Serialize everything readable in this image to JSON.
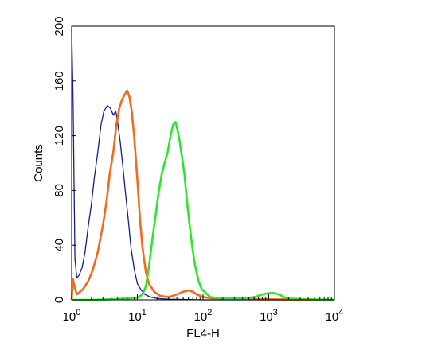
{
  "chart_data": {
    "type": "line",
    "title": "",
    "xlabel": "FL4-H",
    "ylabel": "Counts",
    "x_scale": "log",
    "xlim": [
      1,
      10000
    ],
    "ylim": [
      0,
      200
    ],
    "x_ticks": [
      {
        "value": 1,
        "base": "10",
        "exp": "0"
      },
      {
        "value": 10,
        "base": "10",
        "exp": "1"
      },
      {
        "value": 100,
        "base": "10",
        "exp": "2"
      },
      {
        "value": 1000,
        "base": "10",
        "exp": "3"
      },
      {
        "value": 10000,
        "base": "10",
        "exp": "4"
      }
    ],
    "y_ticks": [
      0,
      40,
      80,
      120,
      160,
      200
    ],
    "grid": false,
    "series": [
      {
        "color": "#1a1a8c",
        "points": [
          [
            1,
            198
          ],
          [
            1.05,
            150
          ],
          [
            1.12,
            30
          ],
          [
            1.2,
            16
          ],
          [
            1.3,
            18
          ],
          [
            1.45,
            24
          ],
          [
            1.6,
            35
          ],
          [
            1.8,
            55
          ],
          [
            2.0,
            70
          ],
          [
            2.2,
            88
          ],
          [
            2.5,
            108
          ],
          [
            2.8,
            128
          ],
          [
            3.1,
            138
          ],
          [
            3.5,
            142
          ],
          [
            3.9,
            140
          ],
          [
            4.3,
            135
          ],
          [
            4.7,
            138
          ],
          [
            5.0,
            130
          ],
          [
            5.5,
            115
          ],
          [
            6.0,
            98
          ],
          [
            6.6,
            78
          ],
          [
            7.3,
            58
          ],
          [
            8.0,
            38
          ],
          [
            9.0,
            22
          ],
          [
            10,
            12
          ],
          [
            11.5,
            7
          ],
          [
            13,
            4
          ],
          [
            16,
            2
          ],
          [
            20,
            1
          ],
          [
            30,
            0.5
          ],
          [
            100,
            0
          ],
          [
            10000,
            0
          ]
        ]
      },
      {
        "color": "#f26a1b",
        "points": [
          [
            1,
            0
          ],
          [
            1.05,
            15
          ],
          [
            1.1,
            10
          ],
          [
            1.2,
            4
          ],
          [
            1.35,
            6
          ],
          [
            1.5,
            8
          ],
          [
            1.8,
            14
          ],
          [
            2.1,
            22
          ],
          [
            2.5,
            35
          ],
          [
            3.0,
            55
          ],
          [
            3.4,
            72
          ],
          [
            3.8,
            92
          ],
          [
            4.3,
            108
          ],
          [
            4.8,
            128
          ],
          [
            5.3,
            140
          ],
          [
            5.8,
            146
          ],
          [
            6.4,
            150
          ],
          [
            7.0,
            153
          ],
          [
            7.6,
            148
          ],
          [
            8.2,
            138
          ],
          [
            9.0,
            118
          ],
          [
            10,
            88
          ],
          [
            11,
            58
          ],
          [
            12,
            38
          ],
          [
            13.5,
            20
          ],
          [
            15,
            12
          ],
          [
            18,
            6
          ],
          [
            22,
            3
          ],
          [
            30,
            2
          ],
          [
            40,
            4
          ],
          [
            50,
            6
          ],
          [
            60,
            7
          ],
          [
            70,
            6
          ],
          [
            80,
            4
          ],
          [
            100,
            2
          ],
          [
            150,
            1
          ],
          [
            300,
            0.5
          ],
          [
            10000,
            0
          ]
        ]
      },
      {
        "color": "#2ee52e",
        "points": [
          [
            1,
            0
          ],
          [
            2,
            0
          ],
          [
            5,
            0.5
          ],
          [
            10,
            1.5
          ],
          [
            12,
            4
          ],
          [
            13.5,
            10
          ],
          [
            15,
            24
          ],
          [
            17,
            45
          ],
          [
            19,
            62
          ],
          [
            21,
            78
          ],
          [
            23.5,
            92
          ],
          [
            26,
            100
          ],
          [
            29,
            108
          ],
          [
            32,
            120
          ],
          [
            35,
            128
          ],
          [
            38,
            130
          ],
          [
            41,
            124
          ],
          [
            44,
            116
          ],
          [
            48,
            104
          ],
          [
            52,
            92
          ],
          [
            57,
            72
          ],
          [
            62,
            56
          ],
          [
            68,
            40
          ],
          [
            75,
            26
          ],
          [
            85,
            14
          ],
          [
            95,
            8
          ],
          [
            110,
            5
          ],
          [
            130,
            2
          ],
          [
            160,
            1.5
          ],
          [
            250,
            1
          ],
          [
            400,
            1
          ],
          [
            600,
            2
          ],
          [
            800,
            4
          ],
          [
            1000,
            5
          ],
          [
            1200,
            5
          ],
          [
            1450,
            4
          ],
          [
            1700,
            2
          ],
          [
            2000,
            1
          ],
          [
            3000,
            0.5
          ],
          [
            10000,
            0
          ]
        ]
      }
    ]
  }
}
